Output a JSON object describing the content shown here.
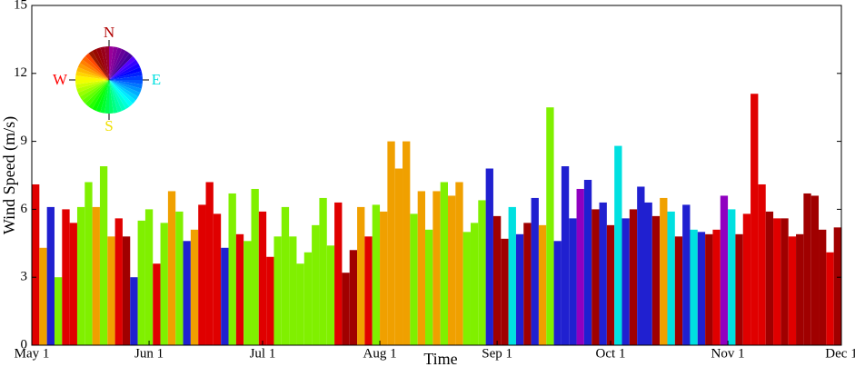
{
  "chart_data": {
    "type": "bar",
    "xlabel": "Time",
    "ylabel": "Wind Speed (m/s)",
    "compass_labels": [
      "N",
      "E",
      "S",
      "W"
    ],
    "compass_label_colors": [
      "#b00000",
      "#00e0e0",
      "#f0e000",
      "#ff0000"
    ],
    "x": [
      0,
      2,
      4,
      6,
      8,
      10,
      12,
      14,
      16,
      18,
      20,
      22,
      24,
      26,
      28,
      30,
      32,
      34,
      36,
      38,
      40,
      42,
      44,
      46,
      48,
      50,
      52,
      54,
      56,
      58,
      60,
      62,
      64,
      66,
      68,
      70,
      72,
      74,
      76,
      78,
      80,
      82,
      84,
      86,
      88,
      90,
      92,
      94,
      96,
      98,
      100,
      102,
      104,
      106,
      108,
      110,
      112,
      114,
      116,
      118,
      120,
      122,
      124,
      126,
      128,
      130,
      132,
      134,
      136,
      138,
      140,
      142,
      144,
      146,
      148,
      150,
      152,
      154,
      156,
      158,
      160,
      162,
      164,
      166,
      168,
      170,
      172,
      174,
      176,
      178,
      180,
      182,
      184,
      186,
      188,
      190,
      192,
      194,
      196,
      198,
      200,
      202,
      204,
      206,
      208,
      210,
      212
    ],
    "values": [
      7.1,
      4.3,
      6.1,
      3.0,
      6.0,
      5.4,
      6.1,
      7.2,
      6.1,
      7.9,
      4.8,
      5.6,
      4.8,
      3.0,
      5.5,
      6.0,
      3.6,
      5.4,
      6.8,
      5.9,
      4.6,
      5.1,
      6.2,
      7.2,
      5.8,
      4.3,
      6.7,
      4.9,
      4.6,
      6.9,
      5.9,
      3.9,
      4.8,
      6.1,
      4.8,
      3.6,
      4.1,
      5.3,
      6.5,
      4.4,
      6.3,
      3.2,
      4.2,
      6.1,
      4.8,
      6.2,
      5.9,
      9.0,
      7.8,
      9.0,
      5.8,
      6.8,
      5.1,
      6.8,
      7.2,
      6.6,
      7.2,
      5.0,
      5.4,
      6.4,
      7.8,
      5.7,
      4.7,
      6.1,
      4.9,
      5.4,
      6.5,
      5.3,
      10.5,
      4.6,
      7.9,
      5.6,
      6.9,
      7.3,
      6.0,
      6.3,
      5.3,
      8.8,
      5.6,
      6.0,
      7.0,
      6.3,
      5.7,
      6.5,
      5.9,
      4.8,
      6.2,
      5.1,
      5.0,
      4.9,
      5.1,
      6.6,
      6.0,
      4.9,
      5.8,
      11.1,
      7.1,
      5.9,
      5.6,
      5.6,
      4.8,
      4.9,
      6.7,
      6.6,
      5.1,
      4.1,
      5.2
    ],
    "colors": [
      "#e00000",
      "#f0a000",
      "#2020d0",
      "#80f000",
      "#e00000",
      "#e00000",
      "#80f000",
      "#80f000",
      "#f0a000",
      "#80f000",
      "#f0a000",
      "#e00000",
      "#a00000",
      "#2020d0",
      "#80f000",
      "#80f000",
      "#e00000",
      "#80f000",
      "#f0a000",
      "#80f000",
      "#2020d0",
      "#f0a000",
      "#e00000",
      "#e00000",
      "#e00000",
      "#2020d0",
      "#80f000",
      "#e00000",
      "#80f000",
      "#80f000",
      "#e00000",
      "#e00000",
      "#80f000",
      "#80f000",
      "#80f000",
      "#80f000",
      "#80f000",
      "#80f000",
      "#80f000",
      "#80f000",
      "#e00000",
      "#a00000",
      "#a00000",
      "#f0a000",
      "#e00000",
      "#80f000",
      "#f0a000",
      "#f0a000",
      "#f0a000",
      "#f0a000",
      "#80f000",
      "#f0a000",
      "#80f000",
      "#f0a000",
      "#80f000",
      "#f0a000",
      "#f0a000",
      "#80f000",
      "#80f000",
      "#80f000",
      "#2020d0",
      "#a00000",
      "#a00000",
      "#00e0e0",
      "#2020d0",
      "#a00000",
      "#2020d0",
      "#f0a000",
      "#80f000",
      "#2020d0",
      "#2020d0",
      "#2020d0",
      "#9000c0",
      "#2020d0",
      "#a00000",
      "#2020d0",
      "#a00000",
      "#00e0e0",
      "#2020d0",
      "#a00000",
      "#2020d0",
      "#2020d0",
      "#a00000",
      "#f0a000",
      "#00e0e0",
      "#a00000",
      "#2020d0",
      "#00e0e0",
      "#2020d0",
      "#a00000",
      "#e00000",
      "#9000c0",
      "#00e0e0",
      "#a00000",
      "#e00000",
      "#e00000",
      "#e00000",
      "#a00000",
      "#e00000",
      "#a00000",
      "#e00000",
      "#a00000",
      "#a00000",
      "#a00000",
      "#a00000",
      "#e00000",
      "#a00000"
    ],
    "xlim": [
      0,
      214
    ],
    "xticks": [
      {
        "value": 0,
        "label": "May 1"
      },
      {
        "value": 31,
        "label": "Jun 1"
      },
      {
        "value": 61,
        "label": "Jul 1"
      },
      {
        "value": 92,
        "label": "Aug 1"
      },
      {
        "value": 123,
        "label": "Sep 1"
      },
      {
        "value": 153,
        "label": "Oct 1"
      },
      {
        "value": 184,
        "label": "Nov 1"
      },
      {
        "value": 214,
        "label": "Dec 1"
      }
    ],
    "ylim": [
      0,
      15
    ],
    "yticks": [
      0,
      3,
      6,
      9,
      12,
      15
    ]
  }
}
